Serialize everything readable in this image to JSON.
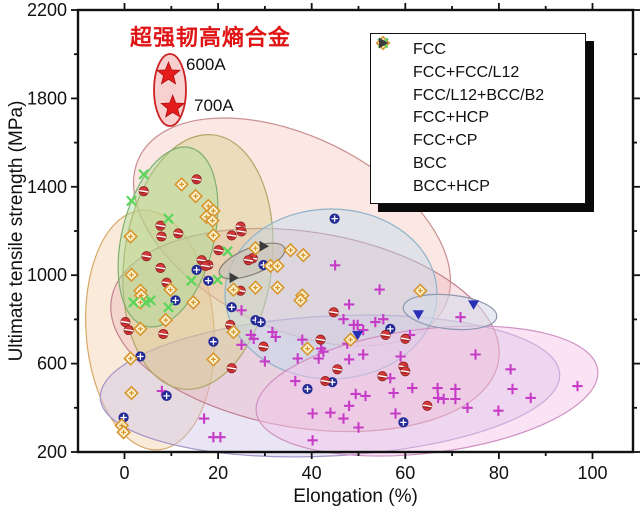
{
  "chart_data": {
    "type": "scatter",
    "title": "超强韧高熵合金",
    "xlabel": "Elongation (%)",
    "ylabel": "Ultimate tensile strength (MPa)",
    "xlim": [
      -10,
      109
    ],
    "ylim": [
      200,
      2200
    ],
    "x_major_ticks": [
      0,
      20,
      40,
      60,
      80,
      100
    ],
    "x_minor_ticks": [
      10,
      30,
      50,
      70,
      90
    ],
    "y_major_ticks": [
      200,
      600,
      1000,
      1400,
      1800,
      2200
    ],
    "y_minor_ticks": [
      400,
      800,
      1200,
      1600,
      2000
    ],
    "grid": false,
    "legend_position": "upper right",
    "series": [
      {
        "name": "FCC",
        "marker": "plus",
        "color": "#c63cc6",
        "points": [
          [
            45,
            1045
          ],
          [
            54.5,
            935
          ],
          [
            48,
            868
          ],
          [
            25,
            841
          ],
          [
            27,
            730
          ],
          [
            25,
            685
          ],
          [
            8,
            476
          ],
          [
            17,
            351
          ],
          [
            19,
            267
          ],
          [
            20.5,
            267
          ],
          [
            46.8,
            801
          ],
          [
            49,
            775
          ],
          [
            51,
            752
          ],
          [
            55.3,
            801
          ],
          [
            31.6,
            743
          ],
          [
            32.3,
            721
          ],
          [
            27.6,
            712
          ],
          [
            42,
            668
          ],
          [
            42.5,
            654
          ],
          [
            38,
            708
          ],
          [
            47.6,
            690
          ],
          [
            30,
            610
          ],
          [
            37,
            623
          ],
          [
            41.5,
            623
          ],
          [
            48,
            619
          ],
          [
            51,
            641
          ],
          [
            59,
            632
          ],
          [
            56.8,
            534
          ],
          [
            36.5,
            521
          ],
          [
            49.4,
            463
          ],
          [
            51.5,
            454
          ],
          [
            57.5,
            467
          ],
          [
            61.5,
            489
          ],
          [
            40.2,
            374
          ],
          [
            44,
            378
          ],
          [
            46.8,
            351
          ],
          [
            48,
            409
          ],
          [
            57.9,
            374
          ],
          [
            50,
            311
          ],
          [
            40.2,
            253
          ],
          [
            71.8,
            810
          ],
          [
            75,
            641
          ],
          [
            82.5,
            574
          ],
          [
            66.9,
            489
          ],
          [
            70.7,
            485
          ],
          [
            67,
            445
          ],
          [
            68.2,
            440
          ],
          [
            70.7,
            440
          ],
          [
            73.3,
            400
          ],
          [
            79.9,
            387
          ],
          [
            82.9,
            485
          ],
          [
            86.8,
            445
          ],
          [
            96.8,
            498
          ],
          [
            61,
            730
          ],
          [
            53.6,
            788
          ],
          [
            49.8,
            775
          ]
        ]
      },
      {
        "name": "FCC+FCC/L12",
        "marker": "oplus",
        "color": "#232a96",
        "points": [
          [
            15.4,
            1024
          ],
          [
            17.9,
            975
          ],
          [
            10.9,
            886
          ],
          [
            44.9,
            1256
          ],
          [
            29.7,
            1046
          ],
          [
            22.9,
            855
          ],
          [
            19,
            699
          ],
          [
            3.4,
            632
          ],
          [
            9,
            454
          ],
          [
            -0.2,
            356
          ],
          [
            28,
            797
          ],
          [
            29.1,
            788
          ],
          [
            56.8,
            757
          ],
          [
            39.1,
            485
          ],
          [
            44.4,
            516
          ],
          [
            59.6,
            334
          ]
        ]
      },
      {
        "name": "FCC/L12+BCC/B2",
        "marker": "halfred",
        "color": "#d43a3a",
        "points": [
          [
            15.4,
            1434
          ],
          [
            4.1,
            1380
          ],
          [
            7.7,
            1224
          ],
          [
            7.9,
            1175
          ],
          [
            11.5,
            1189
          ],
          [
            24.8,
            1220
          ],
          [
            25,
            1198
          ],
          [
            22.9,
            1180
          ],
          [
            4.7,
            1086
          ],
          [
            16.5,
            1068
          ],
          [
            17.9,
            1046
          ],
          [
            17.3,
            1042
          ],
          [
            7.7,
            1033
          ],
          [
            9,
            966
          ],
          [
            20.1,
            1113
          ],
          [
            27.4,
            1077
          ],
          [
            0.2,
            788
          ],
          [
            0.9,
            752
          ],
          [
            8.3,
            734
          ],
          [
            22.6,
            775
          ],
          [
            22.9,
            579
          ],
          [
            44.7,
            832
          ],
          [
            29.7,
            677
          ],
          [
            41.9,
            708
          ],
          [
            59.6,
            587
          ],
          [
            60,
            565
          ],
          [
            45.5,
            574
          ],
          [
            42.9,
            521
          ],
          [
            55.1,
            543
          ],
          [
            60,
            712
          ],
          [
            64.7,
            409
          ],
          [
            24.8,
            930
          ],
          [
            55.8,
            730
          ],
          [
            26.5,
            1068
          ]
        ]
      },
      {
        "name": "FCC+HCP",
        "marker": "tridown",
        "color": "#2a2fb8",
        "points": [
          [
            62.8,
            823
          ],
          [
            74.6,
            868
          ],
          [
            49.8,
            730
          ]
        ]
      },
      {
        "name": "FCC+CP",
        "marker": "diamond",
        "color": "#d6952f",
        "points": [
          [
            12.2,
            1411
          ],
          [
            15.2,
            1358
          ],
          [
            17.9,
            1313
          ],
          [
            19,
            1291
          ],
          [
            17.5,
            1264
          ],
          [
            18.8,
            1247
          ],
          [
            1.3,
            1175
          ],
          [
            19,
            1180
          ],
          [
            1.5,
            1002
          ],
          [
            3.4,
            930
          ],
          [
            3.6,
            908
          ],
          [
            9.8,
            935
          ],
          [
            23.3,
            935
          ],
          [
            14.7,
            877
          ],
          [
            3.4,
            877
          ],
          [
            28,
            1122
          ],
          [
            35.5,
            1113
          ],
          [
            38.2,
            1091
          ],
          [
            31.2,
            1042
          ],
          [
            32.7,
            1042
          ],
          [
            28,
            944
          ],
          [
            32.7,
            944
          ],
          [
            38,
            908
          ],
          [
            63.2,
            930
          ],
          [
            3.4,
            757
          ],
          [
            8.8,
            797
          ],
          [
            23.3,
            743
          ],
          [
            1.3,
            623
          ],
          [
            19,
            619
          ],
          [
            1.5,
            467
          ],
          [
            -0.6,
            320
          ],
          [
            -0.2,
            289
          ],
          [
            37.6,
            886
          ],
          [
            39.1,
            668
          ],
          [
            48.3,
            708
          ]
        ]
      },
      {
        "name": "BCC",
        "marker": "cross",
        "color": "#5bd65b",
        "points": [
          [
            4.1,
            1456
          ],
          [
            1.5,
            1336
          ],
          [
            9.4,
            1256
          ],
          [
            22,
            1108
          ],
          [
            14.3,
            975
          ],
          [
            19.9,
            979
          ],
          [
            4.5,
            877
          ],
          [
            1.9,
            877
          ],
          [
            5.6,
            886
          ],
          [
            9.4,
            855
          ]
        ]
      },
      {
        "name": "BCC+HCP",
        "marker": "triright",
        "color": "#3c3c3c",
        "points": [
          [
            29.7,
            1131
          ],
          [
            23.3,
            988
          ]
        ]
      }
    ],
    "annotation": {
      "title": "超强韧高熵合金",
      "title_color": "#e01414",
      "points": [
        {
          "label": "600A",
          "x": 9.4,
          "y": 1910
        },
        {
          "label": "700A",
          "x": 10.3,
          "y": 1760
        }
      ],
      "star_color": "#e51c1c"
    },
    "regions": [
      {
        "name": "orange-left-region",
        "cx": 150,
        "cy": 330,
        "rx": 64,
        "ry": 120,
        "rot": -4,
        "fill": "#f2c79a",
        "stroke": "#d8a868",
        "opacity": 0.38
      },
      {
        "name": "salmon-upper-region",
        "cx": 292,
        "cy": 232,
        "rx": 170,
        "ry": 96,
        "rot": 26,
        "fill": "#f3b9b0",
        "stroke": "#c98f8f",
        "opacity": 0.35
      },
      {
        "name": "lavender-region",
        "cx": 330,
        "cy": 386,
        "rx": 230,
        "ry": 70,
        "rot": -3,
        "fill": "#cfc5e8",
        "stroke": "#a395c9",
        "opacity": 0.45
      },
      {
        "name": "red-center-region",
        "cx": 305,
        "cy": 330,
        "rx": 196,
        "ry": 98,
        "rot": 9,
        "fill": "#eaa9b6",
        "stroke": "#c08090",
        "opacity": 0.33
      },
      {
        "name": "khaki-region",
        "cx": 198,
        "cy": 262,
        "rx": 74,
        "ry": 128,
        "rot": 7,
        "fill": "#d5cf82",
        "stroke": "#b0a86a",
        "opacity": 0.42
      },
      {
        "name": "green-bcc-region",
        "cx": 168,
        "cy": 237,
        "rx": 46,
        "ry": 92,
        "rot": 14,
        "fill": "#9fdb8f",
        "stroke": "#7fae6f",
        "opacity": 0.4
      },
      {
        "name": "blue-region",
        "cx": 331,
        "cy": 294,
        "rx": 106,
        "ry": 85,
        "rot": 0,
        "fill": "#bcdcef",
        "stroke": "#8fb3c9",
        "opacity": 0.42
      },
      {
        "name": "magenta-right-region",
        "cx": 427,
        "cy": 391,
        "rx": 172,
        "ry": 62,
        "rot": -7,
        "fill": "#f4c4ea",
        "stroke": "#cf92c3",
        "opacity": 0.48
      },
      {
        "name": "gray-bcc-hcp-ellipse",
        "cx": 252,
        "cy": 261,
        "rx": 35,
        "ry": 13,
        "rot": -22,
        "fill": "#c9c2b8",
        "stroke": "#857f75",
        "opacity": 0.68
      },
      {
        "name": "slate-fcc-hcp-ellipse",
        "cx": 450,
        "cy": 312,
        "rx": 47,
        "ry": 17,
        "rot": 6,
        "fill": "#d7dae9",
        "stroke": "#8d97ad",
        "opacity": 0.6
      },
      {
        "name": "star-highlight-ellipse",
        "cx": 170,
        "cy": 90,
        "rx": 16,
        "ry": 36,
        "rot": 0,
        "fill": "#f3a9a9",
        "stroke": "#cc2222",
        "opacity": 0.55,
        "sw": 1.8
      }
    ]
  },
  "legend": {
    "items": [
      {
        "label": "FCC",
        "marker": "plus"
      },
      {
        "label": "FCC+FCC/L12",
        "marker": "oplus"
      },
      {
        "label": "FCC/L12+BCC/B2",
        "marker": "halfred"
      },
      {
        "label": "FCC+HCP",
        "marker": "tridown"
      },
      {
        "label": "FCC+CP",
        "marker": "diamond"
      },
      {
        "label": "BCC",
        "marker": "cross"
      },
      {
        "label": "BCC+HCP",
        "marker": "triright"
      }
    ]
  },
  "axes": {
    "x_label": "Elongation (%)",
    "y_label": "Ultimate tensile strength (MPa)"
  }
}
